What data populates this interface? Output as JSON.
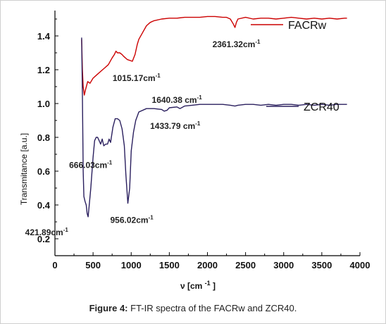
{
  "caption": {
    "label": "Figure 4:",
    "text": " FT-IR spectra of the FACRw and ZCR40."
  },
  "chart_data": {
    "type": "line",
    "xlabel_main": "ν",
    "xlabel_unit": "[cm",
    "xlabel_sup": "-1",
    "xlabel_close": "]",
    "ylabel": "Transmitance [a.u.]",
    "xlim": [
      0,
      4000
    ],
    "ylim": [
      0.1,
      1.55
    ],
    "xticks": [
      0,
      500,
      1000,
      1500,
      2000,
      2500,
      3000,
      3500,
      4000
    ],
    "yticks": [
      0.2,
      0.4,
      0.6,
      0.8,
      1.0,
      1.2,
      1.4
    ],
    "ytick_labels": [
      "0.2",
      "0.4",
      "0.6",
      "0.8",
      "1.0",
      "1.2",
      "1.4"
    ],
    "legend_position": "top-right",
    "series": [
      {
        "name": "FACRw",
        "color": "#cc0000",
        "points": [
          [
            350,
            1.38
          ],
          [
            360,
            1.2
          ],
          [
            370,
            1.1
          ],
          [
            385,
            1.05
          ],
          [
            400,
            1.08
          ],
          [
            430,
            1.13
          ],
          [
            460,
            1.12
          ],
          [
            500,
            1.15
          ],
          [
            550,
            1.17
          ],
          [
            600,
            1.19
          ],
          [
            650,
            1.21
          ],
          [
            700,
            1.23
          ],
          [
            750,
            1.27
          ],
          [
            780,
            1.29
          ],
          [
            800,
            1.31
          ],
          [
            820,
            1.3
          ],
          [
            850,
            1.3
          ],
          [
            880,
            1.29
          ],
          [
            900,
            1.28
          ],
          [
            950,
            1.26
          ],
          [
            1015,
            1.25
          ],
          [
            1050,
            1.29
          ],
          [
            1080,
            1.35
          ],
          [
            1100,
            1.38
          ],
          [
            1150,
            1.42
          ],
          [
            1200,
            1.46
          ],
          [
            1250,
            1.48
          ],
          [
            1300,
            1.49
          ],
          [
            1400,
            1.5
          ],
          [
            1500,
            1.505
          ],
          [
            1600,
            1.505
          ],
          [
            1700,
            1.51
          ],
          [
            1800,
            1.51
          ],
          [
            1900,
            1.51
          ],
          [
            2000,
            1.515
          ],
          [
            2100,
            1.515
          ],
          [
            2200,
            1.51
          ],
          [
            2250,
            1.51
          ],
          [
            2300,
            1.5
          ],
          [
            2340,
            1.47
          ],
          [
            2361,
            1.45
          ],
          [
            2380,
            1.48
          ],
          [
            2400,
            1.5
          ],
          [
            2500,
            1.51
          ],
          [
            2600,
            1.5
          ],
          [
            2700,
            1.505
          ],
          [
            2800,
            1.505
          ],
          [
            2900,
            1.5
          ],
          [
            3000,
            1.505
          ],
          [
            3100,
            1.51
          ],
          [
            3200,
            1.505
          ],
          [
            3300,
            1.5
          ],
          [
            3400,
            1.505
          ],
          [
            3500,
            1.5
          ],
          [
            3600,
            1.505
          ],
          [
            3700,
            1.5
          ],
          [
            3800,
            1.505
          ],
          [
            3830,
            1.505
          ]
        ]
      },
      {
        "name": "ZCR40",
        "color": "#2a1f5e",
        "points": [
          [
            350,
            1.39
          ],
          [
            360,
            1.05
          ],
          [
            370,
            0.6
          ],
          [
            380,
            0.45
          ],
          [
            395,
            0.42
          ],
          [
            410,
            0.4
          ],
          [
            422,
            0.35
          ],
          [
            435,
            0.33
          ],
          [
            450,
            0.4
          ],
          [
            470,
            0.5
          ],
          [
            500,
            0.68
          ],
          [
            520,
            0.78
          ],
          [
            540,
            0.8
          ],
          [
            560,
            0.8
          ],
          [
            580,
            0.78
          ],
          [
            600,
            0.76
          ],
          [
            620,
            0.79
          ],
          [
            640,
            0.75
          ],
          [
            666,
            0.76
          ],
          [
            690,
            0.76
          ],
          [
            710,
            0.79
          ],
          [
            730,
            0.77
          ],
          [
            760,
            0.86
          ],
          [
            790,
            0.91
          ],
          [
            820,
            0.91
          ],
          [
            850,
            0.9
          ],
          [
            880,
            0.85
          ],
          [
            910,
            0.75
          ],
          [
            930,
            0.58
          ],
          [
            956,
            0.41
          ],
          [
            980,
            0.5
          ],
          [
            1000,
            0.72
          ],
          [
            1030,
            0.83
          ],
          [
            1060,
            0.9
          ],
          [
            1100,
            0.95
          ],
          [
            1200,
            0.97
          ],
          [
            1300,
            0.97
          ],
          [
            1400,
            0.965
          ],
          [
            1433,
            0.955
          ],
          [
            1470,
            0.96
          ],
          [
            1500,
            0.975
          ],
          [
            1600,
            0.98
          ],
          [
            1640,
            0.97
          ],
          [
            1700,
            0.985
          ],
          [
            1800,
            0.99
          ],
          [
            1900,
            0.995
          ],
          [
            2000,
            0.995
          ],
          [
            2100,
            0.995
          ],
          [
            2200,
            0.995
          ],
          [
            2300,
            0.99
          ],
          [
            2361,
            0.985
          ],
          [
            2400,
            0.99
          ],
          [
            2500,
            0.995
          ],
          [
            2600,
            0.995
          ],
          [
            2700,
            0.99
          ],
          [
            2800,
            0.995
          ],
          [
            2900,
            0.99
          ],
          [
            3000,
            0.995
          ],
          [
            3100,
            0.995
          ],
          [
            3200,
            0.99
          ],
          [
            3300,
            0.995
          ],
          [
            3400,
            0.99
          ],
          [
            3500,
            0.995
          ],
          [
            3600,
            0.99
          ],
          [
            3700,
            0.995
          ],
          [
            3800,
            0.995
          ],
          [
            3830,
            0.995
          ]
        ]
      }
    ],
    "annotations": [
      {
        "text": "1015.17cm",
        "sup": "-1",
        "x": 1015,
        "y": 1.25
      },
      {
        "text": "2361.32cm",
        "sup": "-1",
        "x": 2361,
        "y": 1.45
      },
      {
        "text": "1640.38 cm",
        "sup": "-1",
        "x": 1640,
        "y": 0.97
      },
      {
        "text": "1433.79 cm",
        "sup": "-1",
        "x": 1433,
        "y": 0.955
      },
      {
        "text": "666.03cm",
        "sup": "-1",
        "x": 666,
        "y": 0.76
      },
      {
        "text": "956.02cm",
        "sup": "-1",
        "x": 956,
        "y": 0.41
      },
      {
        "text": "421.89cm",
        "sup": "-1",
        "x": 422,
        "y": 0.35
      }
    ]
  }
}
